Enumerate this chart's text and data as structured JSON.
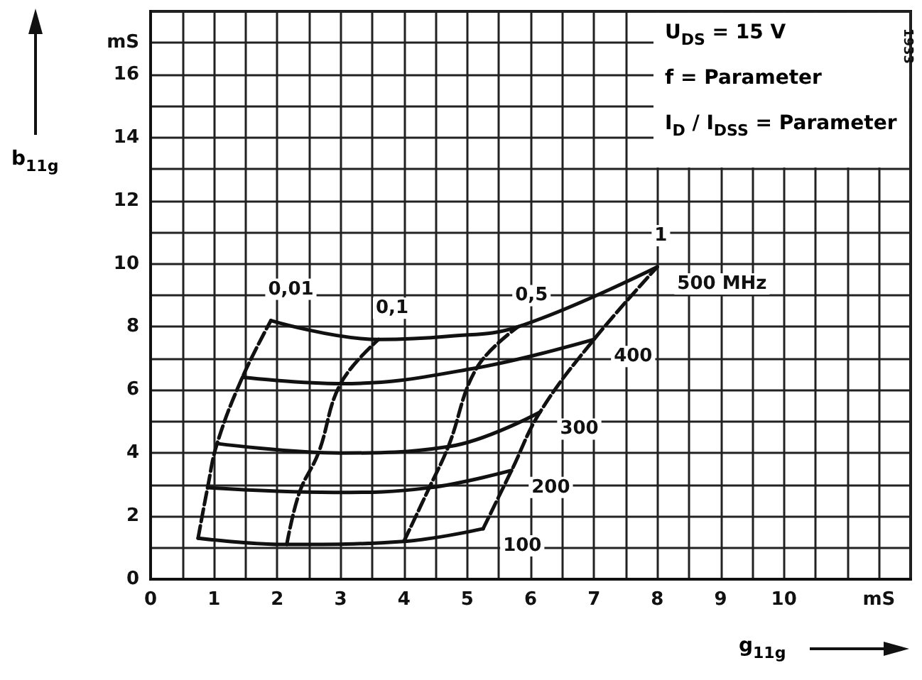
{
  "chart_data": {
    "type": "line",
    "xlabel": "g$_{11g}$",
    "ylabel": "b$_{11g}$",
    "xlim": [
      0,
      12
    ],
    "ylim": [
      0,
      18
    ],
    "xticks": [
      0,
      {
        "value": 0.5,
        "label": null
      },
      1,
      {
        "value": 1.5,
        "label": null
      },
      2,
      {
        "value": 2.5,
        "label": null
      },
      3,
      {
        "value": 3.5,
        "label": null
      },
      4,
      {
        "value": 4.5,
        "label": null
      },
      5,
      {
        "value": 5.5,
        "label": null
      },
      6,
      {
        "value": 6.5,
        "label": null
      },
      7,
      {
        "value": 7.5,
        "label": null
      },
      8,
      {
        "value": 8.5,
        "label": null
      },
      9,
      {
        "value": 9.5,
        "label": null
      },
      10,
      {
        "value": 10.5,
        "label": null
      },
      {
        "value": 11,
        "label": null
      },
      {
        "value": 11.5,
        "label": "mS"
      },
      {
        "value": 12,
        "label": null
      }
    ],
    "yticks": [
      0,
      {
        "value": 1,
        "label": null
      },
      2,
      {
        "value": 3,
        "label": null
      },
      4,
      {
        "value": 5,
        "label": null
      },
      6,
      {
        "value": 7,
        "label": null
      },
      8,
      {
        "value": 9,
        "label": null
      },
      10,
      {
        "value": 11,
        "label": null
      },
      12,
      {
        "value": 13,
        "label": null
      },
      14,
      {
        "value": 15,
        "label": null
      },
      16,
      {
        "value": 17,
        "label": "mS"
      },
      {
        "value": 18,
        "label": null
      }
    ],
    "grid": true,
    "marker": "none",
    "legend": false,
    "annotations": [
      "U$_{DS}$ = 15 V",
      "f = Parameter",
      "I$_{D}$ / I$_{DSS}$ = Parameter",
      "1933"
    ],
    "series": [
      {
        "name": "500 MHz",
        "color": "#111111",
        "line_style": "solid",
        "x": [
          1.9,
          3.6,
          4.7,
          5.8,
          8.0
        ],
        "values": [
          8.2,
          7.6,
          7.7,
          8.0,
          9.9
        ]
      },
      {
        "name": "400",
        "color": "#111111",
        "line_style": "solid",
        "x": [
          1.45,
          3.0,
          5.15,
          7.0
        ],
        "values": [
          6.4,
          6.2,
          6.7,
          7.6
        ]
      },
      {
        "name": "300",
        "color": "#111111",
        "line_style": "solid",
        "x": [
          1.05,
          3.0,
          4.7,
          6.15
        ],
        "values": [
          4.3,
          4.0,
          4.2,
          5.3
        ]
      },
      {
        "name": "200",
        "color": "#111111",
        "line_style": "solid",
        "x": [
          0.9,
          2.9,
          4.4,
          5.7
        ],
        "values": [
          2.9,
          2.75,
          2.9,
          3.45
        ]
      },
      {
        "name": "100",
        "color": "#111111",
        "line_style": "solid",
        "x": [
          0.75,
          2.15,
          4.0,
          5.25
        ],
        "values": [
          1.3,
          1.1,
          1.2,
          1.6
        ]
      },
      {
        "name": "0,01",
        "color": "#111111",
        "line_style": "dashed",
        "x": [
          0.75,
          0.9,
          1.05,
          1.45,
          1.9
        ],
        "values": [
          1.3,
          2.9,
          4.3,
          6.4,
          8.2
        ]
      },
      {
        "name": "0,1",
        "color": "#111111",
        "line_style": "dashed",
        "x": [
          2.15,
          2.35,
          2.65,
          3.0,
          3.6
        ],
        "values": [
          1.1,
          2.75,
          4.0,
          6.2,
          7.6
        ]
      },
      {
        "name": "0,5",
        "color": "#111111",
        "line_style": "dashed",
        "x": [
          4.0,
          4.4,
          4.7,
          5.15,
          5.8
        ],
        "values": [
          1.2,
          2.9,
          4.2,
          6.7,
          8.0
        ]
      },
      {
        "name": "1",
        "color": "#111111",
        "line_style": "dashed",
        "x": [
          5.25,
          5.7,
          6.15,
          7.0,
          8.0
        ],
        "values": [
          1.6,
          3.45,
          5.3,
          7.6,
          9.9
        ]
      }
    ]
  }
}
